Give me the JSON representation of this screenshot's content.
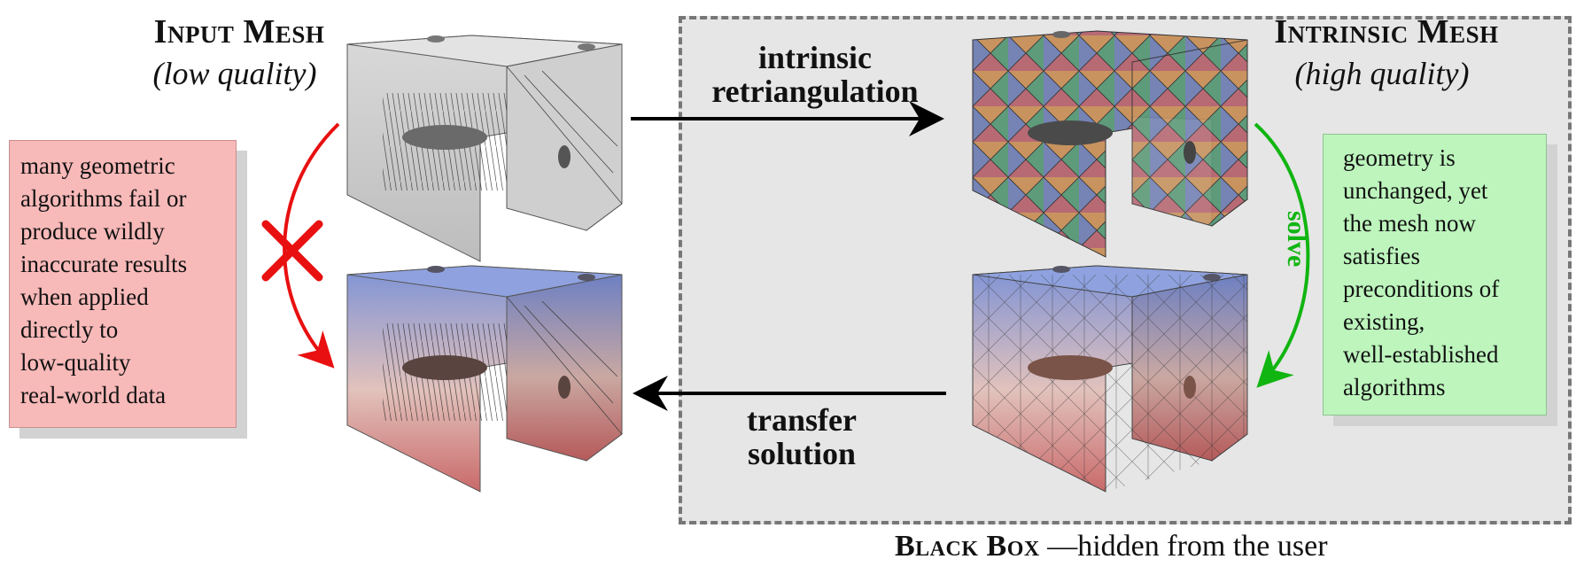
{
  "input_mesh": {
    "title": "Input Mesh",
    "subtitle": "(low quality)"
  },
  "intrinsic_mesh": {
    "title": "Intrinsic Mesh",
    "subtitle": "(high quality)"
  },
  "arrows": {
    "retriangulation": {
      "line1": "intrinsic",
      "line2": "retriangulation"
    },
    "transfer": {
      "line1": "transfer",
      "line2": "solution"
    },
    "solve": "solve"
  },
  "notes": {
    "left": [
      "many geometric",
      "algorithms fail or",
      "produce wildly",
      "inaccurate results",
      "when applied",
      "directly to",
      "low-quality",
      "real-world data"
    ],
    "right": [
      "geometry is",
      "unchanged, yet",
      "the mesh now",
      "satisfies",
      "preconditions of",
      "existing,",
      "well-established",
      "algorithms"
    ]
  },
  "black_box": {
    "title": "Black Box",
    "caption": " —hidden from the user"
  },
  "colors": {
    "fail_arrow": "#e81010",
    "solve_arrow": "#11b511",
    "red_note": "#f8b9b9",
    "green_note": "#bdf5bd",
    "black_box_bg": "#e6e6e6",
    "heat_top": "#7d92d6",
    "heat_bottom": "#c96a6a"
  },
  "icons": {
    "fail": "cross-icon"
  }
}
